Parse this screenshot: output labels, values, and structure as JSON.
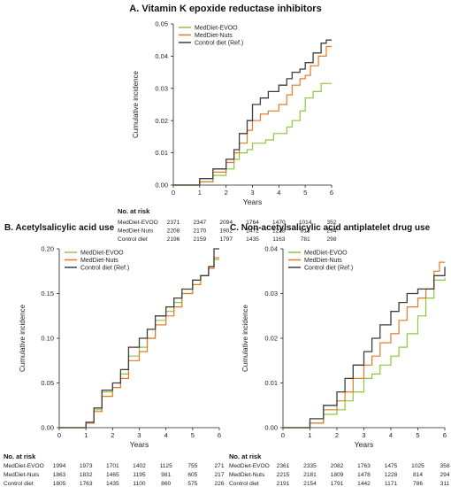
{
  "chart_data": [
    {
      "type": "line",
      "title": "A. Vitamin K epoxide reductase inhibitors",
      "xlabel": "Years",
      "ylabel": "Cumulative incidence",
      "xlim": [
        0,
        6
      ],
      "ylim": [
        0,
        0.05
      ],
      "xticks": [
        "0",
        "1",
        "2",
        "3",
        "4",
        "5",
        "6"
      ],
      "yticks": [
        "0.00",
        "0.01",
        "0.02",
        "0.03",
        "0.04",
        "0.05"
      ],
      "legend_position": "top-left",
      "series": [
        {
          "name": "MedDiet-EVOO",
          "color": "#8dc63f",
          "x": [
            0,
            1.0,
            1.5,
            2.0,
            2.3,
            2.5,
            2.8,
            3.0,
            3.5,
            3.8,
            4.0,
            4.3,
            4.5,
            4.8,
            5.0,
            5.3,
            5.6,
            6.0
          ],
          "y": [
            0,
            0.001,
            0.003,
            0.005,
            0.008,
            0.01,
            0.011,
            0.013,
            0.014,
            0.016,
            0.016,
            0.018,
            0.02,
            0.023,
            0.027,
            0.029,
            0.0315,
            0.0315
          ]
        },
        {
          "name": "MedDiet-Nuts",
          "color": "#e07b28",
          "x": [
            0,
            1.0,
            1.5,
            2.0,
            2.3,
            2.5,
            2.8,
            3.0,
            3.3,
            3.6,
            4.0,
            4.3,
            4.5,
            4.8,
            5.0,
            5.2,
            5.5,
            5.8,
            6.0
          ],
          "y": [
            0,
            0.001,
            0.004,
            0.007,
            0.01,
            0.013,
            0.017,
            0.02,
            0.022,
            0.023,
            0.025,
            0.028,
            0.031,
            0.033,
            0.034,
            0.037,
            0.04,
            0.043,
            0.043
          ]
        },
        {
          "name": "Control diet (Ref.)",
          "color": "#3d3d3d",
          "x": [
            0,
            1.0,
            1.5,
            2.0,
            2.3,
            2.5,
            2.8,
            3.0,
            3.3,
            3.6,
            4.0,
            4.3,
            4.5,
            4.8,
            5.0,
            5.3,
            5.6,
            5.8,
            6.0
          ],
          "y": [
            0,
            0.002,
            0.005,
            0.008,
            0.011,
            0.016,
            0.02,
            0.025,
            0.027,
            0.029,
            0.031,
            0.033,
            0.035,
            0.036,
            0.038,
            0.041,
            0.044,
            0.045,
            0.045
          ]
        }
      ],
      "risk_table": {
        "title": "No. at risk",
        "rows": [
          {
            "label": "MedDiet-EVOO",
            "values": [
              "2371",
              "2347",
              "2094",
              "1764",
              "1470",
              "1014",
              "352"
            ]
          },
          {
            "label": "MedDiet-Nuts",
            "values": [
              "2208",
              "2170",
              "1902",
              "1472",
              "1218",
              "813",
              "294"
            ]
          },
          {
            "label": "Control diet",
            "values": [
              "2196",
              "2159",
              "1797",
              "1435",
              "1163",
              "781",
              "298"
            ]
          }
        ]
      }
    },
    {
      "type": "line",
      "title": "B. Acetylsalicylic acid use",
      "xlabel": "Years",
      "ylabel": "Cumulative incidence",
      "xlim": [
        0,
        6
      ],
      "ylim": [
        0,
        0.2
      ],
      "xticks": [
        "0",
        "1",
        "2",
        "3",
        "4",
        "5",
        "6"
      ],
      "yticks": [
        "0.00",
        "0.05",
        "0.10",
        "0.15",
        "0.20"
      ],
      "legend_position": "top-left",
      "series": [
        {
          "name": "MedDiet-EVOO",
          "color": "#8dc63f",
          "x": [
            0,
            1.0,
            1.3,
            1.6,
            2.0,
            2.3,
            2.6,
            3.0,
            3.3,
            3.6,
            4.0,
            4.3,
            4.6,
            5.0,
            5.3,
            5.6,
            5.8,
            6.0
          ],
          "y": [
            0,
            0.005,
            0.02,
            0.04,
            0.045,
            0.06,
            0.08,
            0.09,
            0.1,
            0.12,
            0.13,
            0.14,
            0.15,
            0.165,
            0.17,
            0.18,
            0.188,
            0.188
          ]
        },
        {
          "name": "MedDiet-Nuts",
          "color": "#e07b28",
          "x": [
            0,
            1.0,
            1.3,
            1.6,
            2.0,
            2.3,
            2.6,
            3.0,
            3.3,
            3.6,
            4.0,
            4.3,
            4.6,
            5.0,
            5.3,
            5.6,
            5.8,
            6.0
          ],
          "y": [
            0,
            0.005,
            0.018,
            0.035,
            0.045,
            0.055,
            0.075,
            0.085,
            0.1,
            0.115,
            0.125,
            0.135,
            0.15,
            0.16,
            0.17,
            0.178,
            0.19,
            0.19
          ]
        },
        {
          "name": "Control diet (Ref.)",
          "color": "#3d3d3d",
          "x": [
            0,
            1.0,
            1.3,
            1.6,
            2.0,
            2.3,
            2.6,
            3.0,
            3.3,
            3.6,
            4.0,
            4.3,
            4.6,
            5.0,
            5.3,
            5.6,
            5.8,
            6.0
          ],
          "y": [
            0,
            0.006,
            0.022,
            0.042,
            0.05,
            0.065,
            0.09,
            0.1,
            0.11,
            0.125,
            0.135,
            0.145,
            0.155,
            0.165,
            0.17,
            0.18,
            0.2,
            0.2
          ]
        }
      ],
      "risk_table": {
        "title": "No. at risk",
        "rows": [
          {
            "label": "MedDiet-EVOO",
            "values": [
              "1994",
              "1973",
              "1701",
              "1402",
              "1125",
              "755",
              "271"
            ]
          },
          {
            "label": "MedDiet-Nuts",
            "values": [
              "1863",
              "1832",
              "1465",
              "1195",
              "981",
              "605",
              "217"
            ]
          },
          {
            "label": "Control diet",
            "values": [
              "1805",
              "1763",
              "1435",
              "1100",
              "860",
              "575",
              "226"
            ]
          }
        ]
      }
    },
    {
      "type": "line",
      "title": "C. Non-acetylsalicylic acid antiplatelet drug use",
      "xlabel": "Years",
      "ylabel": "Cumulative incidence",
      "xlim": [
        0,
        6
      ],
      "ylim": [
        0,
        0.04
      ],
      "xticks": [
        "0",
        "1",
        "2",
        "3",
        "4",
        "5",
        "6"
      ],
      "yticks": [
        "0.00",
        "0.01",
        "0.02",
        "0.03",
        "0.04"
      ],
      "legend_position": "top-left",
      "series": [
        {
          "name": "MedDiet-EVOO",
          "color": "#8dc63f",
          "x": [
            0,
            1.0,
            1.5,
            2.0,
            2.3,
            2.6,
            3.0,
            3.3,
            3.6,
            4.0,
            4.3,
            4.6,
            5.0,
            5.3,
            5.6,
            6.0
          ],
          "y": [
            0,
            0.001,
            0.003,
            0.004,
            0.006,
            0.008,
            0.011,
            0.012,
            0.014,
            0.016,
            0.018,
            0.021,
            0.025,
            0.029,
            0.033,
            0.0335
          ]
        },
        {
          "name": "MedDiet-Nuts",
          "color": "#e07b28",
          "x": [
            0,
            1.0,
            1.5,
            2.0,
            2.3,
            2.6,
            3.0,
            3.3,
            3.6,
            4.0,
            4.3,
            4.6,
            5.0,
            5.3,
            5.6,
            5.8,
            6.0
          ],
          "y": [
            0,
            0.001,
            0.004,
            0.006,
            0.008,
            0.011,
            0.014,
            0.016,
            0.019,
            0.021,
            0.024,
            0.027,
            0.029,
            0.031,
            0.035,
            0.037,
            0.037
          ]
        },
        {
          "name": "Control diet (Ref.)",
          "color": "#3d3d3d",
          "x": [
            0,
            1.0,
            1.5,
            2.0,
            2.3,
            2.6,
            3.0,
            3.3,
            3.6,
            4.0,
            4.3,
            4.6,
            5.0,
            5.3,
            5.6,
            6.0
          ],
          "y": [
            0,
            0.002,
            0.005,
            0.008,
            0.011,
            0.014,
            0.017,
            0.02,
            0.023,
            0.026,
            0.028,
            0.03,
            0.031,
            0.031,
            0.034,
            0.036
          ]
        }
      ],
      "risk_table": {
        "title": "No. at risk",
        "rows": [
          {
            "label": "MedDiet-EVOO",
            "values": [
              "2361",
              "2335",
              "2082",
              "1763",
              "1475",
              "1025",
              "358"
            ]
          },
          {
            "label": "MedDiet-Nuts",
            "values": [
              "2215",
              "2181",
              "1809",
              "1478",
              "1228",
              "814",
              "294"
            ]
          },
          {
            "label": "Control diet",
            "values": [
              "2191",
              "2154",
              "1791",
              "1442",
              "1171",
              "786",
              "311"
            ]
          }
        ]
      }
    }
  ]
}
